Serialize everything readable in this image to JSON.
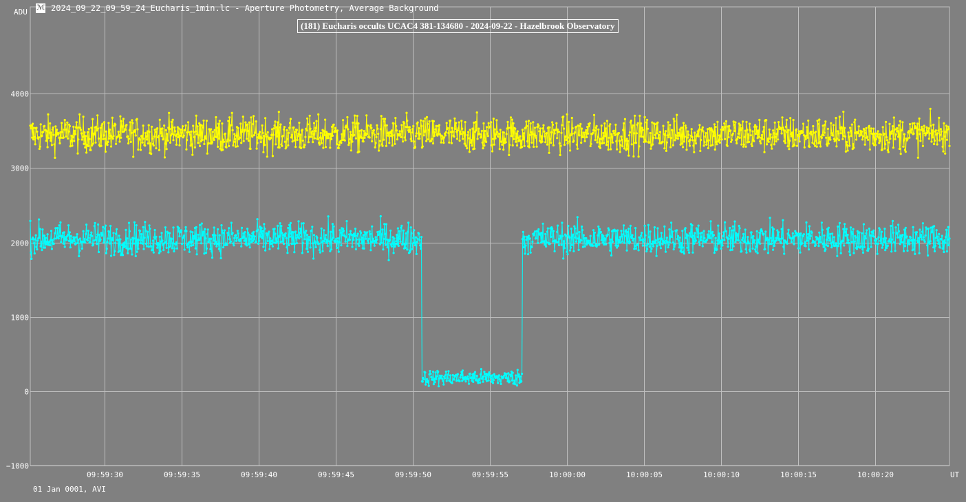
{
  "window": {
    "icon": "lightcurve-app-icon",
    "title": "2024_09_22_09_59_24_Eucharis_1min.lc - Aperture Photometry, Average Background"
  },
  "footer": {
    "date_label": "01 Jan 0001, AVI"
  },
  "chart_data": {
    "type": "line",
    "title": "(181) Eucharis occults UCAC4 381-134680 - 2024-09-22 - Hazelbrook Observatory",
    "ylabel": "ADU",
    "xlabel": "UT",
    "ylim": [
      -1000,
      5000
    ],
    "x_range_seconds": [
      "09:59:25.2",
      "10:00:24.8"
    ],
    "yticks": [
      4000,
      3000,
      2000,
      1000,
      0,
      -1000
    ],
    "yticklabels": [
      "4000",
      "3000",
      "2000",
      "1000",
      "0",
      "−1000"
    ],
    "xticklabels": [
      "09:59:30",
      "09:59:35",
      "09:59:40",
      "09:59:45",
      "09:59:50",
      "09:59:55",
      "10:00:00",
      "10:00:05",
      "10:00:10",
      "10:00:15",
      "10:00:20"
    ],
    "grid": true,
    "background": "#808080",
    "grid_color": "#c0c0c0",
    "series": [
      {
        "color": "#ffff00",
        "baseline": 3450,
        "spread": 200,
        "values_per_second": 25,
        "description_shape": "flat noisy comparison star near 3450 ADU"
      },
      {
        "color": "#00ffff",
        "baseline": 2050,
        "spread": 180,
        "values_per_second": 25,
        "event": {
          "start": "09:59:50.6",
          "end": "09:59:57.1",
          "level": 180,
          "spread": 90
        }
      }
    ]
  }
}
